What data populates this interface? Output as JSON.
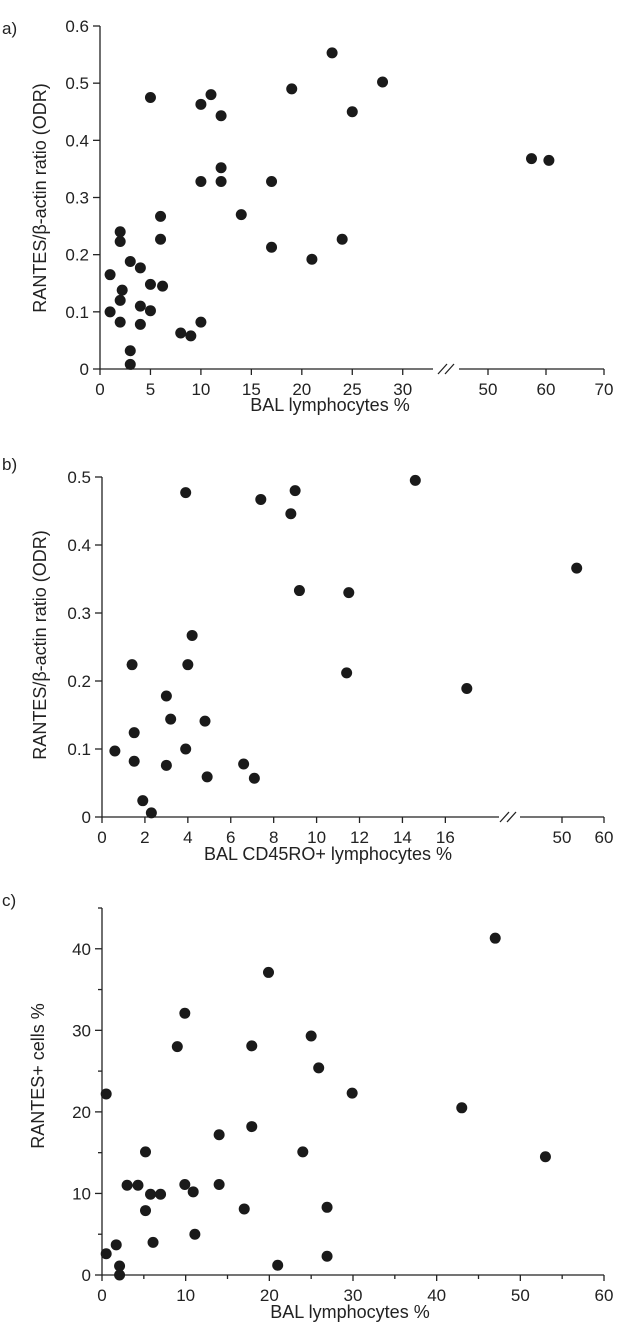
{
  "chart_data": [
    {
      "type": "scatter",
      "panel_label": "a)",
      "xlabel": "BAL lymphocytes  %",
      "ylabel": "RANTES/β-actin ratio (ODR)",
      "x_broken": true,
      "x_segments": [
        [
          0,
          33
        ],
        [
          45,
          70
        ]
      ],
      "xticks": [
        0,
        5,
        10,
        15,
        20,
        25,
        30,
        50,
        60,
        70
      ],
      "yticks": [
        0,
        0.1,
        0.2,
        0.3,
        0.4,
        0.5,
        0.6
      ],
      "ytick_labels": [
        "0",
        "0.1",
        "0.2",
        "0.3",
        "0.4",
        "0.5",
        "0.6"
      ],
      "ylim": [
        0,
        0.6
      ],
      "grid": false,
      "points": [
        {
          "x": 1,
          "y": 0.165
        },
        {
          "x": 1,
          "y": 0.1
        },
        {
          "x": 2,
          "y": 0.24
        },
        {
          "x": 2,
          "y": 0.223
        },
        {
          "x": 2.2,
          "y": 0.138
        },
        {
          "x": 2,
          "y": 0.12
        },
        {
          "x": 2,
          "y": 0.082
        },
        {
          "x": 3,
          "y": 0.188
        },
        {
          "x": 3,
          "y": 0.032
        },
        {
          "x": 3,
          "y": 0.008
        },
        {
          "x": 4,
          "y": 0.177
        },
        {
          "x": 4,
          "y": 0.11
        },
        {
          "x": 4,
          "y": 0.078
        },
        {
          "x": 5,
          "y": 0.475
        },
        {
          "x": 5,
          "y": 0.148
        },
        {
          "x": 5,
          "y": 0.102
        },
        {
          "x": 6,
          "y": 0.267
        },
        {
          "x": 6,
          "y": 0.227
        },
        {
          "x": 6.2,
          "y": 0.145
        },
        {
          "x": 8,
          "y": 0.063
        },
        {
          "x": 9,
          "y": 0.058
        },
        {
          "x": 10,
          "y": 0.463
        },
        {
          "x": 10,
          "y": 0.328
        },
        {
          "x": 10,
          "y": 0.082
        },
        {
          "x": 11,
          "y": 0.48
        },
        {
          "x": 12,
          "y": 0.443
        },
        {
          "x": 12,
          "y": 0.352
        },
        {
          "x": 12,
          "y": 0.328
        },
        {
          "x": 14,
          "y": 0.27
        },
        {
          "x": 17,
          "y": 0.328
        },
        {
          "x": 17,
          "y": 0.213
        },
        {
          "x": 19,
          "y": 0.49
        },
        {
          "x": 21,
          "y": 0.192
        },
        {
          "x": 23,
          "y": 0.553
        },
        {
          "x": 24,
          "y": 0.227
        },
        {
          "x": 25,
          "y": 0.45
        },
        {
          "x": 28,
          "y": 0.502
        },
        {
          "x": 57.5,
          "y": 0.368
        },
        {
          "x": 60.5,
          "y": 0.365
        }
      ]
    },
    {
      "type": "scatter",
      "panel_label": "b)",
      "xlabel": "BAL CD45RO+ lymphocytes  %",
      "ylabel": "RANTES/β-actin ratio (ODR)",
      "x_broken": true,
      "x_segments": [
        [
          0,
          18.5
        ],
        [
          40,
          60
        ]
      ],
      "xticks": [
        0,
        2,
        4,
        6,
        8,
        10,
        12,
        14,
        16,
        50,
        60
      ],
      "yticks": [
        0,
        0.1,
        0.2,
        0.3,
        0.4,
        0.5
      ],
      "ytick_labels": [
        "0",
        "0.1",
        "0.2",
        "0.3",
        "0.4",
        "0.5"
      ],
      "ylim": [
        0,
        0.5
      ],
      "grid": false,
      "points": [
        {
          "x": 0.6,
          "y": 0.097
        },
        {
          "x": 1.4,
          "y": 0.224
        },
        {
          "x": 1.5,
          "y": 0.124
        },
        {
          "x": 1.5,
          "y": 0.082
        },
        {
          "x": 1.9,
          "y": 0.024
        },
        {
          "x": 2.3,
          "y": 0.006
        },
        {
          "x": 3,
          "y": 0.178
        },
        {
          "x": 3,
          "y": 0.076
        },
        {
          "x": 3.2,
          "y": 0.144
        },
        {
          "x": 3.9,
          "y": 0.477
        },
        {
          "x": 4,
          "y": 0.224
        },
        {
          "x": 3.9,
          "y": 0.1
        },
        {
          "x": 4.2,
          "y": 0.267
        },
        {
          "x": 4.8,
          "y": 0.141
        },
        {
          "x": 4.9,
          "y": 0.059
        },
        {
          "x": 6.6,
          "y": 0.078
        },
        {
          "x": 7.1,
          "y": 0.057
        },
        {
          "x": 7.4,
          "y": 0.467
        },
        {
          "x": 8.8,
          "y": 0.446
        },
        {
          "x": 9,
          "y": 0.48
        },
        {
          "x": 9.2,
          "y": 0.333
        },
        {
          "x": 11.4,
          "y": 0.212
        },
        {
          "x": 11.5,
          "y": 0.33
        },
        {
          "x": 14.6,
          "y": 0.495
        },
        {
          "x": 17,
          "y": 0.189
        },
        {
          "x": 53.5,
          "y": 0.366
        }
      ]
    },
    {
      "type": "scatter",
      "panel_label": "c)",
      "xlabel": "BAL lymphocytes  %",
      "ylabel": "RANTES+ cells  %",
      "x_broken": false,
      "xlim": [
        0,
        60
      ],
      "xticks": [
        0,
        10,
        20,
        30,
        40,
        50,
        60
      ],
      "xminor": [
        5,
        15,
        25,
        35,
        45,
        55
      ],
      "yticks": [
        0,
        10,
        20,
        30,
        40
      ],
      "ytick_labels": [
        "0",
        "10",
        "20",
        "30",
        "40"
      ],
      "yminor": [
        5,
        15,
        25,
        35,
        45
      ],
      "ylim": [
        0,
        45
      ],
      "grid": false,
      "points": [
        {
          "x": 0.5,
          "y": 22.2
        },
        {
          "x": 0.5,
          "y": 2.6
        },
        {
          "x": 1.7,
          "y": 3.7
        },
        {
          "x": 2.1,
          "y": 1.1
        },
        {
          "x": 2.1,
          "y": 0
        },
        {
          "x": 3,
          "y": 11
        },
        {
          "x": 4.3,
          "y": 11
        },
        {
          "x": 5.2,
          "y": 15.1
        },
        {
          "x": 5.2,
          "y": 7.9
        },
        {
          "x": 5.8,
          "y": 9.9
        },
        {
          "x": 6.1,
          "y": 4
        },
        {
          "x": 7,
          "y": 9.9
        },
        {
          "x": 9,
          "y": 28
        },
        {
          "x": 9.9,
          "y": 32.1
        },
        {
          "x": 9.9,
          "y": 11.1
        },
        {
          "x": 10.9,
          "y": 10.2
        },
        {
          "x": 11.1,
          "y": 5
        },
        {
          "x": 14,
          "y": 17.2
        },
        {
          "x": 14,
          "y": 11.1
        },
        {
          "x": 17,
          "y": 8.1
        },
        {
          "x": 17.9,
          "y": 28.1
        },
        {
          "x": 17.9,
          "y": 18.2
        },
        {
          "x": 19.9,
          "y": 37.1
        },
        {
          "x": 21,
          "y": 1.2
        },
        {
          "x": 24,
          "y": 15.1
        },
        {
          "x": 25,
          "y": 29.3
        },
        {
          "x": 25.9,
          "y": 25.4
        },
        {
          "x": 26.9,
          "y": 8.3
        },
        {
          "x": 26.9,
          "y": 2.3
        },
        {
          "x": 29.9,
          "y": 22.3
        },
        {
          "x": 43,
          "y": 20.5
        },
        {
          "x": 47,
          "y": 41.3
        },
        {
          "x": 53,
          "y": 14.5
        }
      ]
    }
  ]
}
